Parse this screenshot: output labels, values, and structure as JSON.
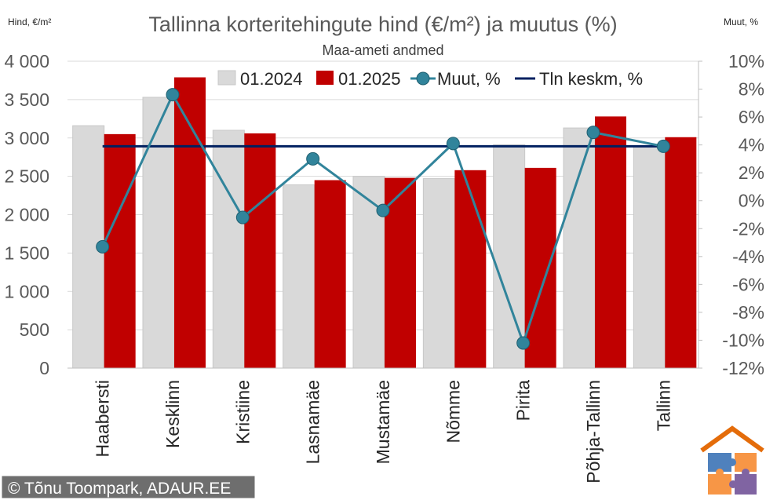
{
  "chart_data": {
    "type": "bar",
    "title": "Tallinna korteritehingute hind (€/m²) ja muutus (%)",
    "subtitle": "Maa-ameti andmed",
    "y_left_label": "Hind, €/m²",
    "y_right_label": "Muut, %",
    "categories": [
      "Haabersti",
      "Kesklinn",
      "Kristiine",
      "Lasnamäe",
      "Mustamäe",
      "Nõmme",
      "Pirita",
      "Põhja-Tallinn",
      "Tallinn"
    ],
    "ylim_left": [
      0,
      4000
    ],
    "ylim_right": [
      -12,
      10
    ],
    "left_tick_labels": [
      "0",
      "500",
      "1 000",
      "1 500",
      "2 000",
      "2 500",
      "3 000",
      "3 500",
      "4 000"
    ],
    "right_tick_labels": [
      "-12%",
      "-10%",
      "-8%",
      "-6%",
      "-4%",
      "-2%",
      "0%",
      "2%",
      "4%",
      "6%",
      "8%",
      "10%"
    ],
    "series": [
      {
        "name": "01.2024",
        "kind": "bar",
        "axis": "left",
        "color": "#d9d9d9",
        "values": [
          3160,
          3530,
          3100,
          2390,
          2500,
          2470,
          2910,
          3130,
          2900
        ]
      },
      {
        "name": "01.2025",
        "kind": "bar",
        "axis": "left",
        "color": "#c00000",
        "values": [
          3050,
          3790,
          3060,
          2450,
          2480,
          2580,
          2610,
          3280,
          3010
        ]
      },
      {
        "name": "Muut, %",
        "kind": "line-marker",
        "axis": "right",
        "color": "#31849b",
        "values": [
          -3.3,
          7.6,
          -1.2,
          3.0,
          -0.7,
          4.1,
          -10.2,
          4.9,
          3.9
        ]
      },
      {
        "name": "Tln keskm, %",
        "kind": "line",
        "axis": "right",
        "color": "#002060",
        "values": [
          3.9,
          3.9,
          3.9,
          3.9,
          3.9,
          3.9,
          3.9,
          3.9,
          3.9
        ]
      }
    ],
    "legend_position": "top",
    "grid": true
  },
  "credit": "© Tõnu Toompark, ADAUR.EE",
  "logo_name": "house-puzzle-logo"
}
